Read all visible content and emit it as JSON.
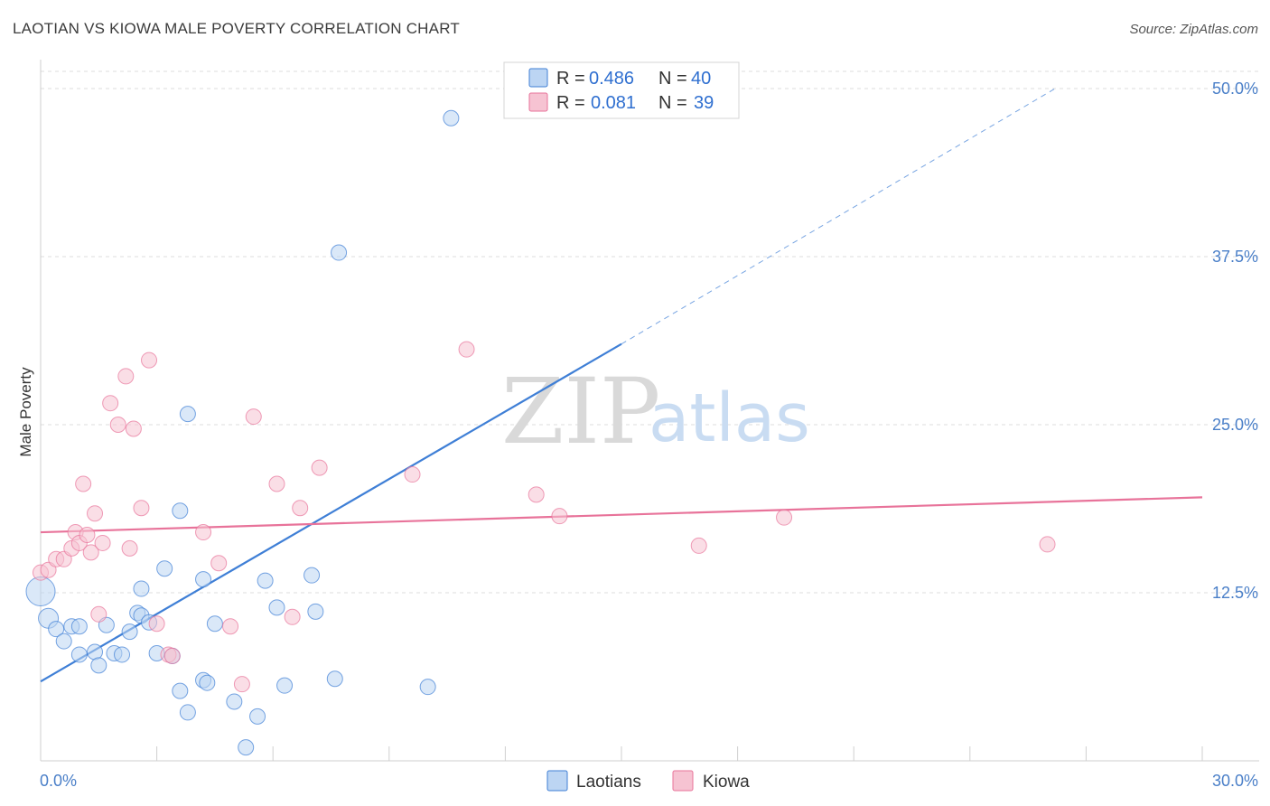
{
  "title": "LAOTIAN VS KIOWA MALE POVERTY CORRELATION CHART",
  "source": "Source: ZipAtlas.com",
  "watermark": {
    "zip": "ZIP",
    "atlas": "atlas"
  },
  "colors": {
    "blue": "#3f7fd6",
    "blue_fill": "#bcd5f3",
    "pink": "#e8739a",
    "pink_fill": "#f6c3d2",
    "tick": "#4a7fc8",
    "grid": "#dddddd"
  },
  "legend": {
    "rows": [
      {
        "r_label": "R = ",
        "r_value": "0.486",
        "n_label": "N = ",
        "n_value": "40"
      },
      {
        "r_label": "R = ",
        "r_value": "0.081",
        "n_label": "N = ",
        "n_value": "39"
      }
    ]
  },
  "chart_data": {
    "type": "scatter",
    "title": "LAOTIAN VS KIOWA MALE POVERTY CORRELATION CHART",
    "xlabel": "",
    "ylabel": "Male Poverty",
    "xlim": [
      0,
      30
    ],
    "ylim": [
      0,
      52
    ],
    "x_tick_labels": [
      "0.0%",
      "30.0%"
    ],
    "y_ticks": [
      12.5,
      25.0,
      37.5,
      50.0
    ],
    "y_tick_labels": [
      "12.5%",
      "25.0%",
      "37.5%",
      "50.0%"
    ],
    "grid": true,
    "series": [
      {
        "name": "Laotians",
        "r": 0.486,
        "n": 40,
        "trend": {
          "x0": 0,
          "y0": 5.9,
          "x1": 15.0,
          "y1": 31.0,
          "dash_to_x": 26.2,
          "dash_to_y": 50.0
        },
        "points": [
          [
            10.6,
            47.8
          ],
          [
            7.7,
            37.8
          ],
          [
            3.8,
            25.8
          ],
          [
            3.6,
            18.6
          ],
          [
            3.2,
            14.3
          ],
          [
            2.6,
            12.8
          ],
          [
            4.2,
            13.5
          ],
          [
            5.8,
            13.4
          ],
          [
            7.0,
            13.8
          ],
          [
            0.0,
            12.6
          ],
          [
            0.2,
            10.6
          ],
          [
            0.4,
            9.8
          ],
          [
            0.6,
            8.9
          ],
          [
            0.8,
            10.0
          ],
          [
            1.0,
            7.9
          ],
          [
            1.0,
            10.0
          ],
          [
            1.4,
            8.1
          ],
          [
            1.5,
            7.1
          ],
          [
            1.7,
            10.1
          ],
          [
            1.9,
            8.0
          ],
          [
            2.1,
            7.9
          ],
          [
            2.3,
            9.6
          ],
          [
            2.5,
            11.0
          ],
          [
            2.6,
            10.8
          ],
          [
            2.8,
            10.3
          ],
          [
            3.0,
            8.0
          ],
          [
            3.4,
            7.8
          ],
          [
            3.6,
            5.2
          ],
          [
            3.8,
            3.6
          ],
          [
            4.2,
            6.0
          ],
          [
            4.3,
            5.8
          ],
          [
            4.5,
            10.2
          ],
          [
            5.0,
            4.4
          ],
          [
            5.3,
            1.0
          ],
          [
            5.6,
            3.3
          ],
          [
            6.1,
            11.4
          ],
          [
            7.1,
            11.1
          ],
          [
            6.3,
            5.6
          ],
          [
            7.6,
            6.1
          ],
          [
            10.0,
            5.5
          ]
        ]
      },
      {
        "name": "Kiowa",
        "r": 0.081,
        "n": 39,
        "trend": {
          "x0": 0,
          "y0": 17.0,
          "x1": 30.0,
          "y1": 19.6
        },
        "points": [
          [
            0.0,
            14.0
          ],
          [
            0.2,
            14.2
          ],
          [
            0.4,
            15.0
          ],
          [
            0.6,
            15.0
          ],
          [
            0.8,
            15.8
          ],
          [
            0.9,
            17.0
          ],
          [
            1.0,
            16.2
          ],
          [
            1.1,
            20.6
          ],
          [
            1.2,
            16.8
          ],
          [
            1.3,
            15.5
          ],
          [
            1.4,
            18.4
          ],
          [
            1.5,
            10.9
          ],
          [
            1.6,
            16.2
          ],
          [
            1.8,
            26.6
          ],
          [
            2.0,
            25.0
          ],
          [
            2.2,
            28.6
          ],
          [
            2.3,
            15.8
          ],
          [
            2.4,
            24.7
          ],
          [
            2.6,
            18.8
          ],
          [
            2.8,
            29.8
          ],
          [
            3.0,
            10.2
          ],
          [
            3.3,
            7.9
          ],
          [
            3.4,
            7.8
          ],
          [
            4.2,
            17.0
          ],
          [
            4.6,
            14.7
          ],
          [
            4.9,
            10.0
          ],
          [
            5.2,
            5.7
          ],
          [
            5.5,
            25.6
          ],
          [
            6.1,
            20.6
          ],
          [
            6.5,
            10.7
          ],
          [
            6.7,
            18.8
          ],
          [
            7.2,
            21.8
          ],
          [
            9.6,
            21.3
          ],
          [
            11.0,
            30.6
          ],
          [
            12.8,
            19.8
          ],
          [
            13.4,
            18.2
          ],
          [
            17.0,
            16.0
          ],
          [
            19.2,
            18.1
          ],
          [
            26.0,
            16.1
          ]
        ]
      }
    ]
  },
  "bottom_legend": {
    "items": [
      "Laotians",
      "Kiowa"
    ]
  }
}
